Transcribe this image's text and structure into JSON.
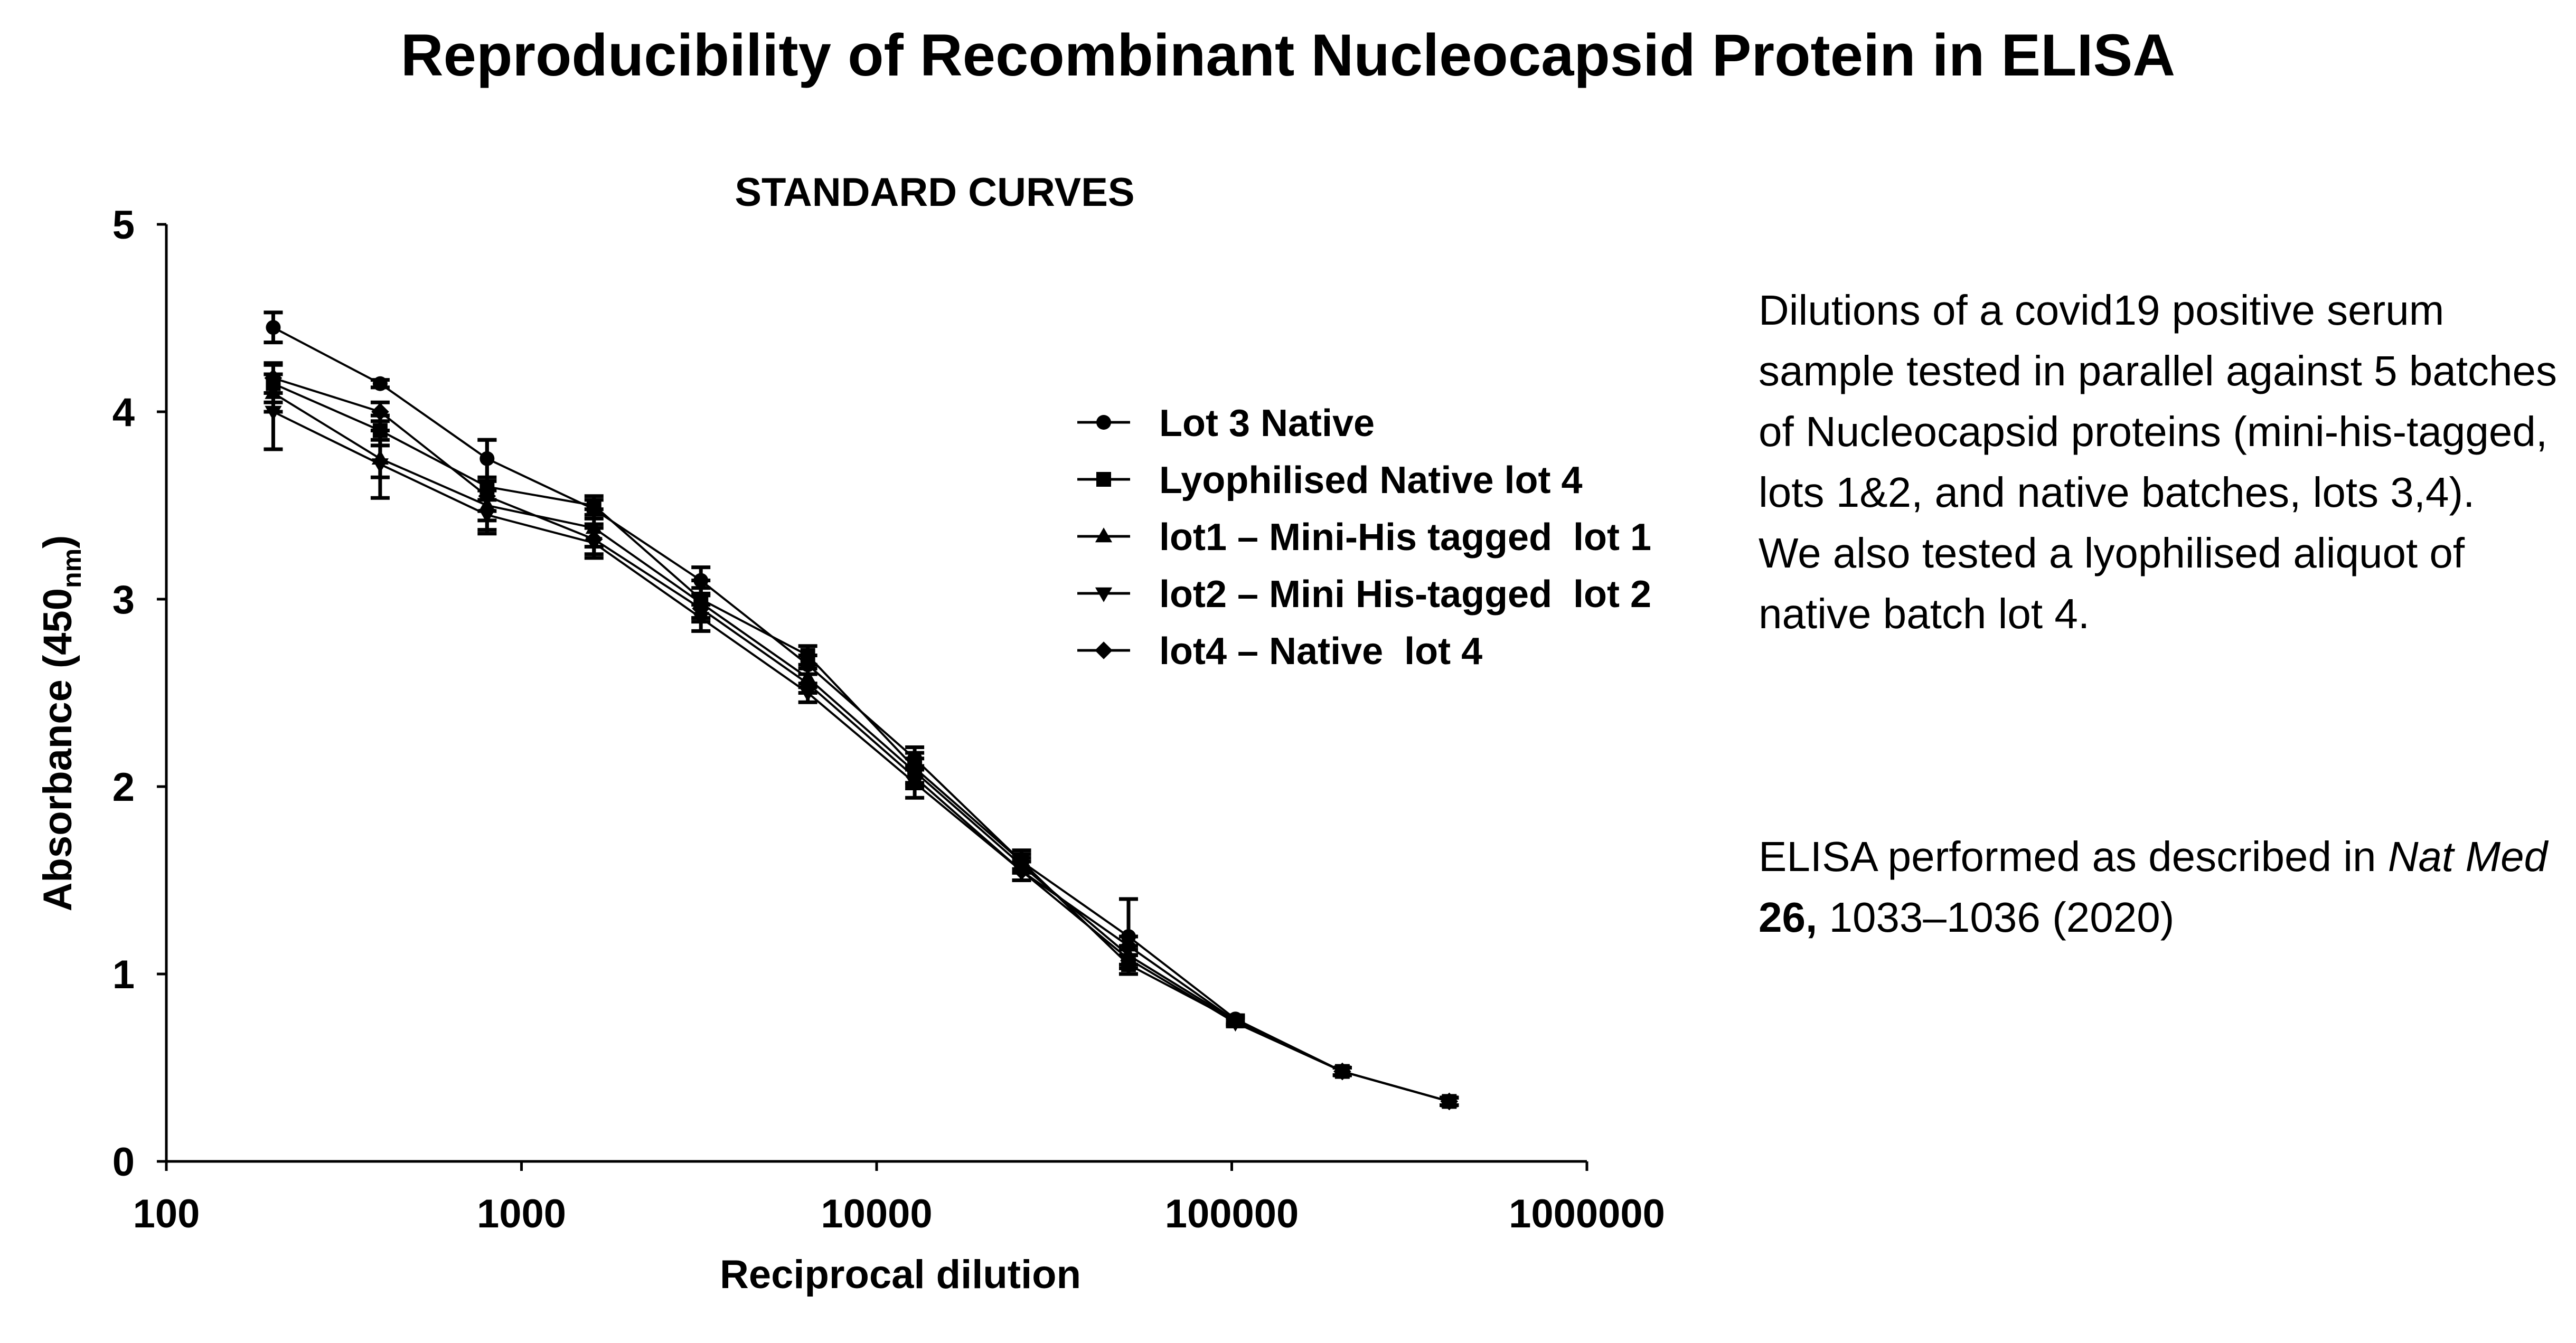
{
  "title": "Reproducibility of Recombinant Nucleocapsid Protein in ELISA",
  "description": [
    "Dilutions of a covid19 positive serum sample tested in parallel against 5 batches of Nucleocapsid proteins (mini-his-tagged, lots 1&2, and native batches, lots 3,4).",
    "We also tested a lyophilised aliquot of native batch lot 4."
  ],
  "reference": {
    "prefix": "ELISA performed as described in ",
    "journal": "Nat Med",
    "volume": "26,",
    "pages": "1033–1036 (2020)"
  },
  "chart_data": {
    "type": "line",
    "title": "STANDARD CURVES",
    "xlabel": "Reciprocal dilution",
    "ylabel": "Absorbance (450",
    "ylabel_sub": "nm",
    "ylabel_end": ")",
    "x_scale": "log",
    "xlim": [
      100,
      1000000
    ],
    "ylim": [
      0,
      5
    ],
    "x_ticks": [
      100,
      1000,
      10000,
      100000,
      1000000
    ],
    "x_tick_labels": [
      "100",
      "1000",
      "10000",
      "100000",
      "1000000"
    ],
    "y_ticks": [
      0,
      1,
      2,
      3,
      4,
      5
    ],
    "y_tick_labels": [
      "0",
      "1",
      "2",
      "3",
      "4",
      "5"
    ],
    "grid": false,
    "legend_position": "center-right",
    "color": "#000000",
    "x": [
      200,
      400,
      800,
      1600,
      3200,
      6400,
      12800,
      25600,
      51200,
      102400,
      204800,
      409600
    ],
    "series": [
      {
        "name": "Lot 3 Native",
        "marker": "circle",
        "values": [
          4.45,
          4.15,
          3.75,
          3.48,
          3.1,
          2.65,
          2.15,
          1.6,
          1.2,
          0.76,
          0.48,
          0.32
        ],
        "errors": [
          0.08,
          0.02,
          0.1,
          0.05,
          0.07,
          0.05,
          0.06,
          0.04,
          0.2,
          0.02,
          0.02,
          0.02
        ]
      },
      {
        "name": "Lyophilised Native lot 4",
        "marker": "square",
        "values": [
          4.15,
          3.9,
          3.6,
          3.5,
          3.0,
          2.7,
          2.1,
          1.6,
          1.05,
          0.75,
          0.48,
          0.32
        ],
        "errors": [
          0.1,
          0.08,
          0.25,
          0.05,
          0.1,
          0.05,
          0.08,
          0.06,
          0.05,
          0.02,
          0.02,
          0.02
        ]
      },
      {
        "name": "lot1 – Mini-His tagged  lot 1",
        "marker": "triangle-up",
        "values": [
          4.1,
          3.75,
          3.5,
          3.38,
          2.98,
          2.58,
          2.08,
          1.58,
          1.1,
          0.75,
          0.48,
          0.32
        ],
        "errors": [
          0.1,
          0.1,
          0.08,
          0.1,
          0.08,
          0.05,
          0.07,
          0.04,
          0.05,
          0.02,
          0.02,
          0.02
        ]
      },
      {
        "name": "lot2 – Mini His-tagged  lot 2",
        "marker": "triangle-down",
        "values": [
          4.0,
          3.72,
          3.45,
          3.3,
          2.9,
          2.5,
          2.02,
          1.55,
          1.08,
          0.74,
          0.48,
          0.32
        ],
        "errors": [
          0.2,
          0.18,
          0.08,
          0.08,
          0.07,
          0.05,
          0.08,
          0.05,
          0.05,
          0.02,
          0.02,
          0.02
        ]
      },
      {
        "name": "lot4 – Native  lot 4",
        "marker": "diamond",
        "values": [
          4.18,
          4.0,
          3.55,
          3.32,
          2.95,
          2.55,
          2.05,
          1.55,
          1.15,
          0.75,
          0.48,
          0.32
        ],
        "errors": [
          0.08,
          0.05,
          0.08,
          0.08,
          0.07,
          0.05,
          0.06,
          0.05,
          0.05,
          0.02,
          0.02,
          0.02
        ]
      }
    ]
  }
}
